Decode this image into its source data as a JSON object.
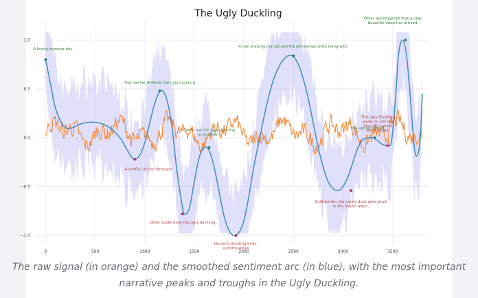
{
  "colors": {
    "page_bg": "#f2f3f5",
    "card_bg": "#ffffff",
    "raw": "#f28a3a",
    "smooth": "#4a8fc0",
    "band": "#c9c6f6",
    "annotation_peak": "#2e7d32",
    "annotation_trough": "#b23a3a",
    "peak_marker": "#2a8a6e",
    "trough_marker": "#b23a5a",
    "axis_text": "#444444"
  },
  "chart_data": {
    "type": "line",
    "title": "The Ugly Duckling",
    "xlabel": "",
    "ylabel": "",
    "xlim": [
      -100,
      3870
    ],
    "ylim": [
      -1.1,
      1.2
    ],
    "x_ticks": [
      0,
      500,
      1000,
      1500,
      2000,
      2500,
      3000,
      3500
    ],
    "y_ticks": [
      -1.0,
      -0.5,
      0.0,
      0.5,
      1.0
    ],
    "x_tick_labels": [
      "0",
      "500",
      "1000",
      "1500",
      "2000",
      "2500",
      "3000",
      "3500"
    ],
    "y_tick_labels": [
      "−1.0",
      "−0.5",
      "0.0",
      "0.5",
      "1.0"
    ],
    "grid": true,
    "legend": null,
    "series": [
      {
        "name": "",
        "kind": "smoothed arc",
        "x": [
          0,
          50,
          100,
          180,
          260,
          350,
          450,
          550,
          650,
          750,
          820,
          870,
          900,
          950,
          1000,
          1050,
          1100,
          1150,
          1180,
          1220,
          1270,
          1320,
          1370,
          1400,
          1450,
          1500,
          1550,
          1600,
          1650,
          1700,
          1750,
          1800,
          1850,
          1900,
          1950,
          2000,
          2050,
          2100,
          2150,
          2200,
          2250,
          2300,
          2350,
          2400,
          2450,
          2500,
          2550,
          2600,
          2650,
          2700,
          2750,
          2800,
          2850,
          2900,
          2950,
          3000,
          3050,
          3100,
          3150,
          3200,
          3250,
          3300,
          3350,
          3400,
          3450,
          3480,
          3500,
          3530,
          3560,
          3600,
          3640,
          3680,
          3720,
          3750,
          3780,
          3800
        ],
        "y": [
          0.8,
          0.55,
          0.3,
          0.12,
          0.1,
          0.14,
          0.16,
          0.15,
          0.1,
          0.0,
          -0.12,
          -0.2,
          -0.22,
          -0.18,
          -0.05,
          0.15,
          0.35,
          0.47,
          0.48,
          0.4,
          0.15,
          -0.3,
          -0.65,
          -0.78,
          -0.72,
          -0.45,
          -0.2,
          -0.1,
          -0.13,
          -0.3,
          -0.55,
          -0.8,
          -0.95,
          -1.0,
          -0.97,
          -0.85,
          -0.6,
          -0.3,
          -0.05,
          0.2,
          0.42,
          0.6,
          0.72,
          0.8,
          0.84,
          0.83,
          0.75,
          0.6,
          0.4,
          0.15,
          -0.1,
          -0.3,
          -0.45,
          -0.52,
          -0.54,
          -0.5,
          -0.4,
          -0.25,
          -0.1,
          -0.02,
          0.0,
          0.0,
          -0.03,
          -0.07,
          -0.08,
          -0.07,
          0.05,
          0.4,
          0.85,
          1.0,
          0.85,
          0.4,
          -0.1,
          -0.18,
          0.0,
          0.45
        ]
      },
      {
        "name": "",
        "kind": "raw signal",
        "description_level": "oscillates roughly between -0.12 and 0.25 around 0.05"
      }
    ],
    "annotations": [
      {
        "text": "A lovely summer day",
        "x": 0,
        "y": 0.8,
        "type": "peak"
      },
      {
        "text": "The mother defends the ugly duckling",
        "x": 1150,
        "y": 0.48,
        "type": "peak"
      },
      {
        "text": "A conflict at the farmyard",
        "x": 900,
        "y": -0.22,
        "type": "trough"
      },
      {
        "text": "Geese ask the ugly duckling\nto join them.",
        "x": 1650,
        "y": -0.1,
        "type": "peak"
      },
      {
        "text": "Other ducks bully the ugly duckling",
        "x": 1380,
        "y": -0.78,
        "type": "trough"
      },
      {
        "text": "Hunters shooting birds,\na storm arises",
        "x": 1920,
        "y": -1.0,
        "type": "trough"
      },
      {
        "text": "A hen praising the cat and the old woman she's living with.",
        "x": 2500,
        "y": 0.84,
        "type": "peak"
      },
      {
        "text": "Cold winter, the lonely duck gets stuck\nin the frozen water.",
        "x": 3080,
        "y": -0.54,
        "type": "trough"
      },
      {
        "text": "The spring comes.",
        "x": 3320,
        "y": 0.0,
        "type": "peak"
      },
      {
        "text": "The Ugly Duckling\nwants to join the\nbeautiful swans\nbut is afraid.",
        "x": 3450,
        "y": -0.08,
        "type": "trough"
      },
      {
        "text": "Other ducklings tell that a new,\nbeautiful swan has arrived.",
        "x": 3630,
        "y": 1.0,
        "type": "peak"
      }
    ]
  },
  "caption": {
    "line1": "The raw signal (in orange) and the smoothed sentiment arc (in blue), with the most important",
    "line2": "narrative peaks and troughs in the Ugly Duckling."
  }
}
